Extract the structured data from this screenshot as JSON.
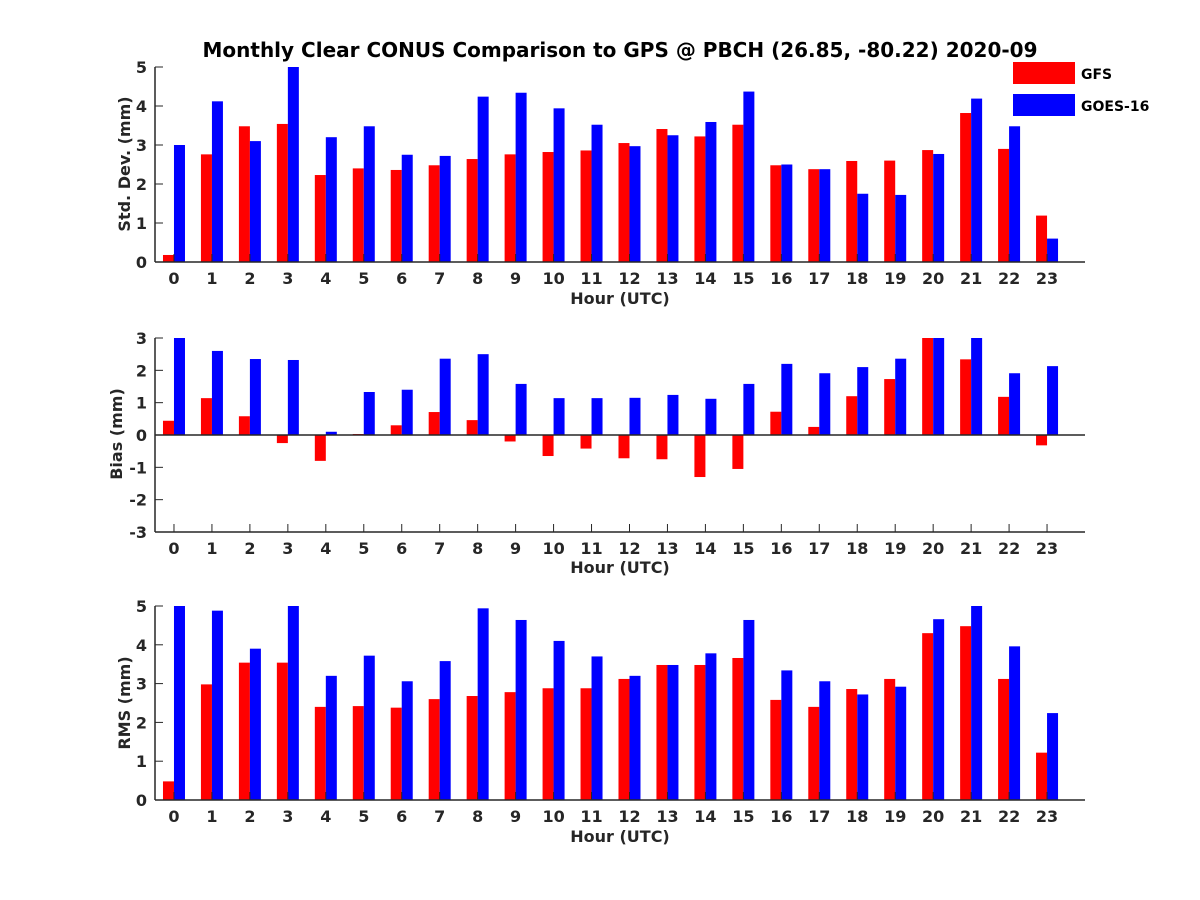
{
  "chart_data": [
    {
      "type": "bar",
      "title": "Monthly Clear CONUS Comparison to GPS @ PBCH (26.85, -80.22) 2020-09",
      "xlabel": "Hour (UTC)",
      "ylabel": "Std. Dev. (mm)",
      "ylim": [
        0,
        5
      ],
      "yticks": [
        0,
        1,
        2,
        3,
        4,
        5
      ],
      "categories": [
        "0",
        "1",
        "2",
        "3",
        "4",
        "5",
        "6",
        "7",
        "8",
        "9",
        "10",
        "11",
        "12",
        "13",
        "14",
        "15",
        "16",
        "17",
        "18",
        "19",
        "20",
        "21",
        "22",
        "23"
      ],
      "series": [
        {
          "name": "GFS",
          "color": "#ff0000",
          "values": [
            0.18,
            2.76,
            3.48,
            3.54,
            2.23,
            2.4,
            2.36,
            2.48,
            2.64,
            2.76,
            2.82,
            2.86,
            3.05,
            3.41,
            3.22,
            3.52,
            2.48,
            2.38,
            2.59,
            2.6,
            2.87,
            3.82,
            2.9,
            1.19
          ]
        },
        {
          "name": "GOES-16",
          "color": "#0000ff",
          "values": [
            3.0,
            4.12,
            3.1,
            5.0,
            3.2,
            3.48,
            2.75,
            2.72,
            4.24,
            4.34,
            3.94,
            3.52,
            2.97,
            3.25,
            3.59,
            4.37,
            2.5,
            2.38,
            1.75,
            1.72,
            2.77,
            4.19,
            3.48,
            0.6
          ]
        }
      ],
      "legend": "top-right"
    },
    {
      "type": "bar",
      "xlabel": "Hour (UTC)",
      "ylabel": "Bias (mm)",
      "ylim": [
        -3,
        3
      ],
      "yticks": [
        -3,
        -2,
        -1,
        0,
        1,
        2,
        3
      ],
      "categories": [
        "0",
        "1",
        "2",
        "3",
        "4",
        "5",
        "6",
        "7",
        "8",
        "9",
        "10",
        "11",
        "12",
        "13",
        "14",
        "15",
        "16",
        "17",
        "18",
        "19",
        "20",
        "21",
        "22",
        "23"
      ],
      "series": [
        {
          "name": "GFS",
          "color": "#ff0000",
          "values": [
            0.44,
            1.14,
            0.58,
            -0.25,
            -0.8,
            0.03,
            0.3,
            0.71,
            0.46,
            -0.2,
            -0.65,
            -0.42,
            -0.72,
            -0.75,
            -1.3,
            -1.05,
            0.72,
            0.25,
            1.2,
            1.73,
            3.0,
            2.34,
            1.18,
            -0.32
          ]
        },
        {
          "name": "GOES-16",
          "color": "#0000ff",
          "values": [
            3.0,
            2.6,
            2.35,
            2.32,
            0.1,
            1.33,
            1.4,
            2.36,
            2.5,
            1.58,
            1.14,
            1.14,
            1.15,
            1.24,
            1.12,
            1.58,
            2.2,
            1.91,
            2.1,
            2.36,
            3.0,
            3.0,
            1.91,
            2.13
          ]
        }
      ]
    },
    {
      "type": "bar",
      "xlabel": "Hour (UTC)",
      "ylabel": "RMS (mm)",
      "ylim": [
        0,
        5
      ],
      "yticks": [
        0,
        1,
        2,
        3,
        4,
        5
      ],
      "categories": [
        "0",
        "1",
        "2",
        "3",
        "4",
        "5",
        "6",
        "7",
        "8",
        "9",
        "10",
        "11",
        "12",
        "13",
        "14",
        "15",
        "16",
        "17",
        "18",
        "19",
        "20",
        "21",
        "22",
        "23"
      ],
      "series": [
        {
          "name": "GFS",
          "color": "#ff0000",
          "values": [
            0.48,
            2.98,
            3.54,
            3.54,
            2.4,
            2.42,
            2.38,
            2.6,
            2.68,
            2.78,
            2.88,
            2.88,
            3.12,
            3.48,
            3.48,
            3.66,
            2.58,
            2.4,
            2.86,
            3.12,
            4.3,
            4.48,
            3.12,
            1.22
          ]
        },
        {
          "name": "GOES-16",
          "color": "#0000ff",
          "values": [
            5.0,
            4.88,
            3.9,
            5.0,
            3.2,
            3.72,
            3.06,
            3.58,
            4.94,
            4.64,
            4.1,
            3.7,
            3.2,
            3.48,
            3.78,
            4.64,
            3.34,
            3.06,
            2.72,
            2.92,
            4.66,
            5.0,
            3.96,
            2.24
          ]
        }
      ]
    }
  ]
}
